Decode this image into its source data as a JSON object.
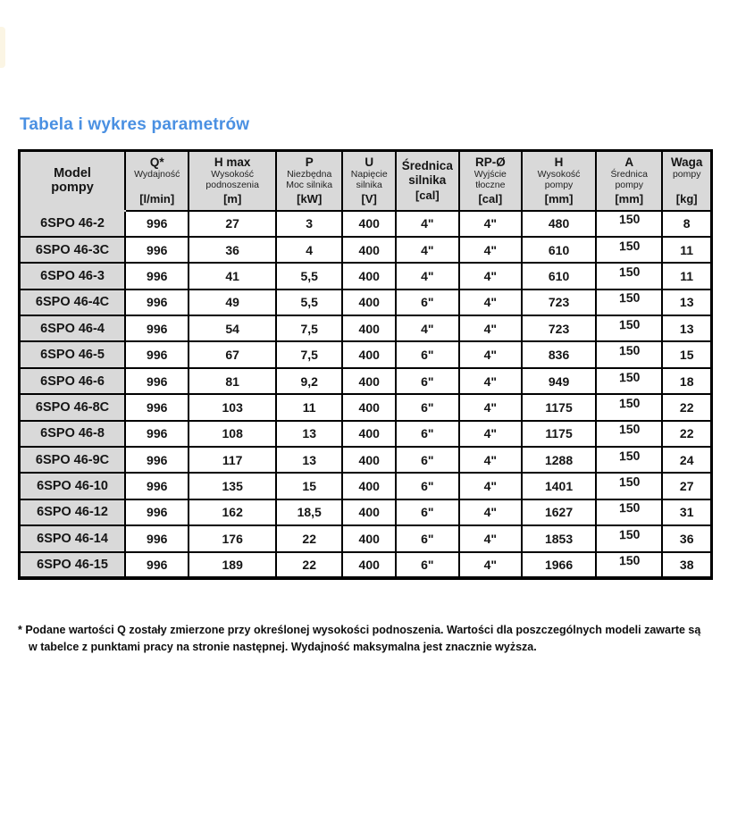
{
  "page": {
    "title": "Tabela i wykres parametrów",
    "footnote_lines": [
      "* Podane wartości Q zostały zmierzone przy określonej wysokości podnoszenia. Wartości dla poszczególnych modeli zawarte są",
      "w tabelce z punktami pracy na stronie następnej. Wydajność maksymalna jest znacznie wyższa."
    ]
  },
  "colors": {
    "title_blue": "#4A90E2",
    "header_gray": "#D9D9D9",
    "border_black": "#000000",
    "page_bg": "#FFFFFF"
  },
  "table": {
    "columns": [
      {
        "key": "model",
        "main": "Model pompy",
        "sub": "",
        "unit": ""
      },
      {
        "key": "q",
        "main": "Q*",
        "sub": "Wydajność",
        "unit": "[l/min]"
      },
      {
        "key": "hmax",
        "main": "H max",
        "sub": "Wysokość podnoszenia",
        "unit": "[m]"
      },
      {
        "key": "p",
        "main": "P",
        "sub": "Niezbędna Moc silnika",
        "unit": "[kW]"
      },
      {
        "key": "u",
        "main": "U",
        "sub": "Napięcie silnika",
        "unit": "[V]"
      },
      {
        "key": "motor_dia",
        "main": "Średnica silnika",
        "sub": "",
        "unit": "[cal]"
      },
      {
        "key": "outlet",
        "main": "RP-Ø",
        "sub": "Wyjście tłoczne",
        "unit": "[cal]"
      },
      {
        "key": "h",
        "main": "H",
        "sub": "Wysokość pompy",
        "unit": "[mm]"
      },
      {
        "key": "a",
        "main": "A",
        "sub": "Średnica pompy",
        "unit": "[mm]"
      },
      {
        "key": "waga",
        "main": "Waga",
        "sub": "pompy",
        "unit": "[kg]"
      }
    ],
    "rows": [
      {
        "model": "6SPO 46-2",
        "q": "996",
        "hmax": "27",
        "p": "3",
        "u": "400",
        "motor_dia": "4\"",
        "outlet": "4\"",
        "h": "480",
        "a": "150",
        "waga": "8"
      },
      {
        "model": "6SPO 46-3C",
        "q": "996",
        "hmax": "36",
        "p": "4",
        "u": "400",
        "motor_dia": "4\"",
        "outlet": "4\"",
        "h": "610",
        "a": "150",
        "waga": "11"
      },
      {
        "model": "6SPO 46-3",
        "q": "996",
        "hmax": "41",
        "p": "5,5",
        "u": "400",
        "motor_dia": "4\"",
        "outlet": "4\"",
        "h": "610",
        "a": "150",
        "waga": "11"
      },
      {
        "model": "6SPO 46-4C",
        "q": "996",
        "hmax": "49",
        "p": "5,5",
        "u": "400",
        "motor_dia": "6\"",
        "outlet": "4\"",
        "h": "723",
        "a": "150",
        "waga": "13"
      },
      {
        "model": "6SPO 46-4",
        "q": "996",
        "hmax": "54",
        "p": "7,5",
        "u": "400",
        "motor_dia": "4\"",
        "outlet": "4\"",
        "h": "723",
        "a": "150",
        "waga": "13"
      },
      {
        "model": "6SPO 46-5",
        "q": "996",
        "hmax": "67",
        "p": "7,5",
        "u": "400",
        "motor_dia": "6\"",
        "outlet": "4\"",
        "h": "836",
        "a": "150",
        "waga": "15"
      },
      {
        "model": "6SPO 46-6",
        "q": "996",
        "hmax": "81",
        "p": "9,2",
        "u": "400",
        "motor_dia": "6\"",
        "outlet": "4\"",
        "h": "949",
        "a": "150",
        "waga": "18"
      },
      {
        "model": "6SPO 46-8C",
        "q": "996",
        "hmax": "103",
        "p": "11",
        "u": "400",
        "motor_dia": "6\"",
        "outlet": "4\"",
        "h": "1175",
        "a": "150",
        "waga": "22"
      },
      {
        "model": "6SPO 46-8",
        "q": "996",
        "hmax": "108",
        "p": "13",
        "u": "400",
        "motor_dia": "6\"",
        "outlet": "4\"",
        "h": "1175",
        "a": "150",
        "waga": "22"
      },
      {
        "model": "6SPO 46-9C",
        "q": "996",
        "hmax": "117",
        "p": "13",
        "u": "400",
        "motor_dia": "6\"",
        "outlet": "4\"",
        "h": "1288",
        "a": "150",
        "waga": "24"
      },
      {
        "model": "6SPO 46-10",
        "q": "996",
        "hmax": "135",
        "p": "15",
        "u": "400",
        "motor_dia": "6\"",
        "outlet": "4\"",
        "h": "1401",
        "a": "150",
        "waga": "27"
      },
      {
        "model": "6SPO 46-12",
        "q": "996",
        "hmax": "162",
        "p": "18,5",
        "u": "400",
        "motor_dia": "6\"",
        "outlet": "4\"",
        "h": "1627",
        "a": "150",
        "waga": "31"
      },
      {
        "model": "6SPO 46-14",
        "q": "996",
        "hmax": "176",
        "p": "22",
        "u": "400",
        "motor_dia": "6\"",
        "outlet": "4\"",
        "h": "1853",
        "a": "150",
        "waga": "36"
      },
      {
        "model": "6SPO 46-15",
        "q": "996",
        "hmax": "189",
        "p": "22",
        "u": "400",
        "motor_dia": "6\"",
        "outlet": "4\"",
        "h": "1966",
        "a": "150",
        "waga": "38"
      }
    ]
  }
}
